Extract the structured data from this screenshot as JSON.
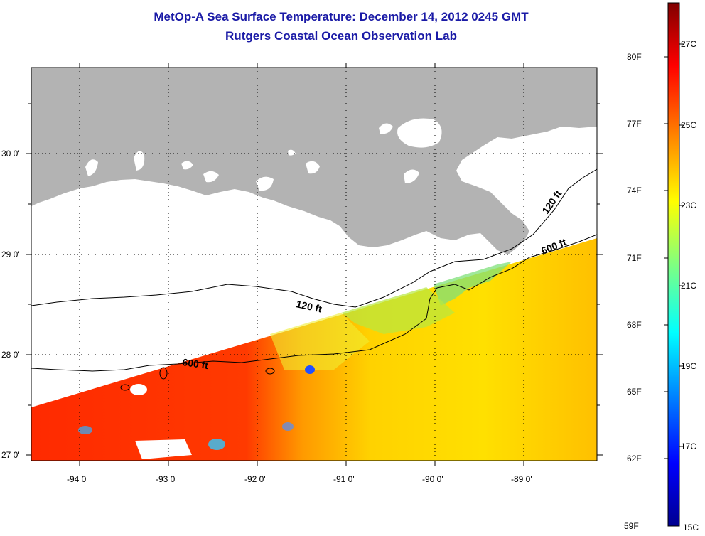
{
  "title": {
    "line1": "MetOp-A Sea Surface Temperature:  December 14, 2012 0245 GMT",
    "line2": "Rutgers Coastal Ocean Observation Lab"
  },
  "map": {
    "lat_ticks": [
      "30 0'",
      "29 0'",
      "28 0'",
      "27 0'"
    ],
    "lon_ticks": [
      "-94 0'",
      "-93 0'",
      "-92 0'",
      "-91 0'",
      "-90 0'",
      "-89 0'"
    ],
    "land_color": "#b3b3b3",
    "grid": true,
    "contours": [
      {
        "label": "120 ft",
        "depth_ft": 120
      },
      {
        "label": "600 ft",
        "depth_ft": 600
      }
    ],
    "contour_labels": [
      "120 ft",
      "120 ft",
      "600 ft",
      "600 ft"
    ]
  },
  "colorbar": {
    "fahrenheit": [
      "80F",
      "77F",
      "74F",
      "71F",
      "68F",
      "65F",
      "62F",
      "59F"
    ],
    "celsius": [
      "27C",
      "25C",
      "23C",
      "21C",
      "19C",
      "17C",
      "15C"
    ],
    "colormap": [
      "#00008f",
      "#0000ff",
      "#0080ff",
      "#00ffff",
      "#80ff80",
      "#ffff00",
      "#ff8000",
      "#ff0000",
      "#800000"
    ]
  }
}
